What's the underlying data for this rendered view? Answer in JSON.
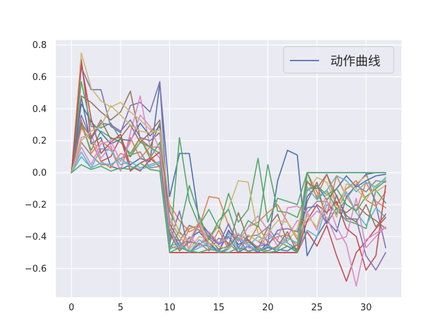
{
  "chart_data": {
    "type": "line",
    "title": "",
    "xlabel": "",
    "ylabel": "",
    "xlim": [
      -1.6,
      33.6
    ],
    "ylim": [
      -0.78,
      0.83
    ],
    "xticks": [
      0,
      5,
      10,
      15,
      20,
      25,
      30
    ],
    "yticks": [
      -0.6,
      -0.4,
      -0.2,
      0.0,
      0.2,
      0.4,
      0.6,
      0.8
    ],
    "xtick_labels": [
      "0",
      "5",
      "10",
      "15",
      "20",
      "25",
      "30"
    ],
    "ytick_labels": [
      "−0.6",
      "−0.4",
      "−0.2",
      "0.0",
      "0.2",
      "0.4",
      "0.6",
      "0.8"
    ],
    "grid": true,
    "background": "#eaeaf2",
    "legend": {
      "position": "top-right",
      "entries": [
        {
          "label": "动作曲线",
          "color": "#4c72b0"
        }
      ]
    },
    "x": [
      0,
      1,
      2,
      3,
      4,
      5,
      6,
      7,
      8,
      9,
      10,
      11,
      12,
      13,
      14,
      15,
      16,
      17,
      18,
      19,
      20,
      21,
      22,
      23,
      24,
      25,
      26,
      27,
      28,
      29,
      30,
      31,
      32
    ],
    "series": [
      {
        "color": "#4c72b0",
        "values": [
          0,
          0.47,
          0.18,
          0.22,
          0.04,
          0.02,
          0.05,
          0.09,
          0.07,
          0.56,
          -0.15,
          0.12,
          0.12,
          -0.3,
          -0.38,
          -0.45,
          -0.4,
          -0.5,
          -0.46,
          -0.5,
          -0.44,
          -0.05,
          0.14,
          0.11,
          -0.52,
          -0.4,
          -0.3,
          -0.37,
          -0.15,
          -0.08,
          -0.01,
          0,
          0
        ]
      },
      {
        "color": "#dd8452",
        "values": [
          0,
          0.33,
          0.12,
          0.2,
          0.15,
          0.01,
          0.22,
          0.09,
          0.16,
          0.16,
          -0.2,
          -0.3,
          -0.37,
          -0.34,
          -0.15,
          -0.16,
          -0.33,
          -0.43,
          -0.34,
          -0.31,
          -0.25,
          -0.2,
          -0.31,
          -0.42,
          0,
          -0.12,
          -0.26,
          -0.02,
          -0.15,
          -0.24,
          -0.06,
          -0.18,
          -0.22
        ]
      },
      {
        "color": "#55a868",
        "values": [
          0,
          0.3,
          0.14,
          0.26,
          0.22,
          0.19,
          0.12,
          0.22,
          0.09,
          0.19,
          -0.47,
          0.22,
          -0.18,
          -0.33,
          -0.23,
          -0.35,
          -0.13,
          -0.31,
          -0.23,
          0.09,
          -0.31,
          -0.16,
          -0.18,
          -0.2,
          0,
          -0.16,
          -0.11,
          -0.23,
          -0.3,
          -0.32,
          -0.35,
          -0.11,
          -0.19
        ]
      },
      {
        "color": "#c44e52",
        "values": [
          0,
          0.71,
          0.2,
          0.07,
          0.1,
          0.22,
          0.01,
          0.06,
          0.09,
          0.04,
          -0.5,
          -0.5,
          -0.5,
          -0.5,
          -0.5,
          -0.5,
          -0.5,
          -0.5,
          -0.5,
          -0.5,
          -0.5,
          -0.5,
          -0.5,
          -0.5,
          -0.37,
          -0.46,
          -0.33,
          -0.52,
          -0.68,
          -0.5,
          -0.43,
          -0.35,
          -0.28
        ]
      },
      {
        "color": "#8172b3",
        "values": [
          0,
          0.66,
          0.52,
          0.52,
          0.29,
          0.25,
          0.42,
          0.44,
          0.38,
          0.57,
          -0.44,
          -0.24,
          -0.5,
          -0.45,
          -0.46,
          -0.5,
          -0.48,
          -0.41,
          -0.5,
          -0.46,
          -0.45,
          -0.5,
          -0.5,
          -0.5,
          0,
          0,
          0,
          0,
          0,
          0,
          0,
          -0.2,
          -0.47
        ]
      },
      {
        "color": "#937860",
        "values": [
          0,
          0.48,
          0.44,
          0.38,
          0.33,
          0.38,
          0.51,
          0.21,
          0.16,
          0.31,
          -0.32,
          -0.43,
          -0.33,
          -0.36,
          -0.4,
          -0.33,
          -0.46,
          -0.25,
          -0.43,
          -0.48,
          -0.34,
          -0.26,
          -0.44,
          -0.48,
          -0.18,
          -0.06,
          -0.32,
          -0.22,
          -0.25,
          -0.2,
          -0.26,
          -0.3,
          -0.35
        ]
      },
      {
        "color": "#da8bc3",
        "values": [
          0,
          0.22,
          0.24,
          0.09,
          0.17,
          0.01,
          0.25,
          0.48,
          0.16,
          0.09,
          -0.3,
          -0.4,
          -0.47,
          -0.32,
          -0.46,
          -0.48,
          -0.37,
          -0.43,
          -0.34,
          -0.27,
          -0.36,
          -0.46,
          -0.4,
          -0.3,
          -0.31,
          -0.24,
          -0.28,
          -0.42,
          -0.4,
          -0.16,
          -0.47,
          -0.4,
          -0.34
        ]
      },
      {
        "color": "#8c8c8c",
        "values": [
          0,
          0.19,
          0.11,
          0.05,
          0.05,
          0.09,
          0.11,
          0.13,
          0.03,
          0.04,
          -0.39,
          -0.43,
          -0.5,
          -0.44,
          -0.49,
          -0.41,
          -0.44,
          -0.5,
          -0.4,
          -0.39,
          -0.34,
          -0.43,
          -0.46,
          -0.49,
          -0.25,
          -0.18,
          -0.18,
          -0.26,
          -0.16,
          -0.08,
          -0.12,
          -0.05,
          -0.06
        ]
      },
      {
        "color": "#ccb974",
        "values": [
          0,
          0.75,
          0.53,
          0.45,
          0.41,
          0.44,
          0.38,
          0.33,
          0.27,
          0.24,
          -0.28,
          -0.4,
          -0.48,
          -0.4,
          -0.42,
          -0.33,
          -0.22,
          -0.05,
          -0.06,
          -0.38,
          -0.47,
          -0.47,
          -0.43,
          -0.35,
          -0.12,
          -0.03,
          -0.06,
          -0.21,
          -0.1,
          -0.07,
          -0.02,
          -0.12,
          -0.08
        ]
      },
      {
        "color": "#64b5cd",
        "values": [
          0,
          0.13,
          0.03,
          0.15,
          0.14,
          0.05,
          0.07,
          0.03,
          0.05,
          0.07,
          -0.46,
          -0.44,
          -0.5,
          -0.47,
          -0.44,
          -0.49,
          -0.38,
          -0.48,
          -0.46,
          -0.4,
          -0.42,
          -0.38,
          -0.44,
          -0.49,
          -0.36,
          -0.4,
          -0.2,
          -0.25,
          -0.12,
          -0.25,
          -0.33,
          -0.22,
          -0.28
        ]
      },
      {
        "color": "#4c72b0",
        "values": [
          0,
          0.43,
          0.32,
          0.25,
          0.18,
          0.21,
          0.2,
          0.31,
          0.23,
          0.29,
          -0.35,
          -0.46,
          -0.41,
          -0.37,
          -0.44,
          -0.5,
          -0.36,
          -0.45,
          -0.42,
          -0.49,
          -0.47,
          -0.48,
          -0.49,
          -0.45,
          -0.15,
          -0.08,
          -0.17,
          -0.1,
          -0.02,
          -0.09,
          -0.05,
          -0.02,
          -0.01
        ]
      },
      {
        "color": "#dd8452",
        "values": [
          0,
          0.28,
          0.2,
          0.07,
          0.03,
          0.12,
          0.1,
          0.22,
          0.11,
          0.03,
          -0.46,
          -0.48,
          -0.35,
          -0.33,
          -0.48,
          -0.36,
          -0.48,
          -0.41,
          -0.44,
          -0.33,
          -0.44,
          -0.4,
          -0.39,
          -0.46,
          -0.05,
          -0.15,
          -0.01,
          -0.2,
          -0.1,
          -0.05,
          -0.17,
          -0.21,
          -0.12
        ]
      },
      {
        "color": "#55a868",
        "values": [
          0,
          0.57,
          0.29,
          0.28,
          0.31,
          0.21,
          0.1,
          0.19,
          0.16,
          0.12,
          -0.48,
          -0.36,
          -0.08,
          -0.27,
          -0.42,
          -0.3,
          -0.23,
          -0.42,
          -0.3,
          -0.34,
          0.05,
          -0.24,
          -0.25,
          -0.28,
          -0.11,
          -0.08,
          -0.14,
          -0.1,
          -0.2,
          -0.24,
          -0.15,
          -0.1,
          -0.05
        ]
      },
      {
        "color": "#c44e52",
        "values": [
          0,
          0.68,
          0.34,
          0.12,
          0.19,
          0.24,
          0.04,
          0.01,
          0.08,
          0.13,
          -0.5,
          -0.5,
          -0.5,
          -0.5,
          -0.5,
          -0.5,
          -0.5,
          -0.5,
          -0.5,
          -0.5,
          -0.5,
          -0.5,
          -0.5,
          -0.5,
          -0.3,
          -0.2,
          -0.25,
          -0.18,
          -0.35,
          -0.4,
          -0.61,
          -0.52,
          -0.08
        ]
      },
      {
        "color": "#8172b3",
        "values": [
          0,
          0.36,
          0.21,
          0.31,
          0.3,
          0.26,
          0.33,
          0.22,
          0.2,
          0.25,
          -0.24,
          -0.37,
          -0.44,
          -0.31,
          -0.4,
          -0.45,
          -0.32,
          -0.47,
          -0.39,
          -0.43,
          -0.46,
          -0.36,
          -0.35,
          -0.37,
          -0.22,
          -0.21,
          -0.32,
          -0.14,
          -0.29,
          -0.29,
          -0.52,
          -0.61,
          -0.5
        ]
      },
      {
        "color": "#937860",
        "values": [
          0,
          0.31,
          0.22,
          0.33,
          0.21,
          0.22,
          0.3,
          0.19,
          0.25,
          0.33,
          -0.38,
          -0.49,
          -0.43,
          -0.45,
          -0.41,
          -0.48,
          -0.46,
          -0.39,
          -0.42,
          -0.47,
          -0.49,
          -0.46,
          -0.37,
          -0.5,
          -0.06,
          -0.1,
          -0.01,
          -0.15,
          -0.27,
          -0.31,
          -0.2,
          -0.34,
          -0.26
        ]
      },
      {
        "color": "#da8bc3",
        "values": [
          0,
          0.16,
          0.05,
          0.18,
          0.2,
          0.07,
          0.19,
          0.36,
          0.29,
          0.14,
          -0.35,
          -0.48,
          -0.4,
          -0.46,
          -0.37,
          -0.44,
          -0.41,
          -0.38,
          -0.47,
          -0.48,
          -0.39,
          -0.42,
          -0.22,
          -0.21,
          -0.25,
          -0.36,
          -0.17,
          -0.34,
          -0.45,
          -0.71,
          -0.42,
          -0.38,
          -0.34
        ]
      },
      {
        "color": "#ccb974",
        "values": [
          0,
          0.2,
          0.26,
          0.29,
          0.42,
          0.36,
          0.3,
          0.26,
          0.25,
          0.27,
          -0.21,
          -0.38,
          -0.43,
          -0.3,
          -0.44,
          -0.46,
          -0.48,
          -0.41,
          -0.39,
          -0.43,
          -0.38,
          -0.3,
          -0.31,
          -0.4,
          -0.27,
          -0.34,
          -0.12,
          -0.28,
          -0.07,
          -0.1,
          -0.17,
          -0.08,
          -0.04
        ]
      },
      {
        "color": "#64b5cd",
        "values": [
          0,
          0.1,
          0.03,
          0.06,
          0.05,
          0.09,
          0.04,
          0.02,
          0.04,
          0.06,
          -0.48,
          -0.45,
          -0.5,
          -0.42,
          -0.46,
          -0.5,
          -0.47,
          -0.41,
          -0.45,
          -0.49,
          -0.46,
          -0.48,
          -0.41,
          -0.44,
          -0.09,
          -0.17,
          -0.11,
          -0.02,
          -0.05,
          -0.12,
          -0.06,
          -0.09,
          -0.03
        ]
      },
      {
        "color": "#55a868",
        "values": [
          0,
          0.05,
          0.02,
          0.04,
          0.01,
          0.03,
          0.02,
          0.06,
          0.02,
          0.01,
          -0.5,
          -0.47,
          -0.49,
          -0.5,
          -0.48,
          -0.49,
          -0.5,
          -0.47,
          -0.49,
          -0.48,
          -0.5,
          -0.49,
          -0.46,
          -0.5,
          0,
          0,
          0,
          0,
          0,
          0,
          0,
          0,
          0
        ]
      }
    ]
  }
}
